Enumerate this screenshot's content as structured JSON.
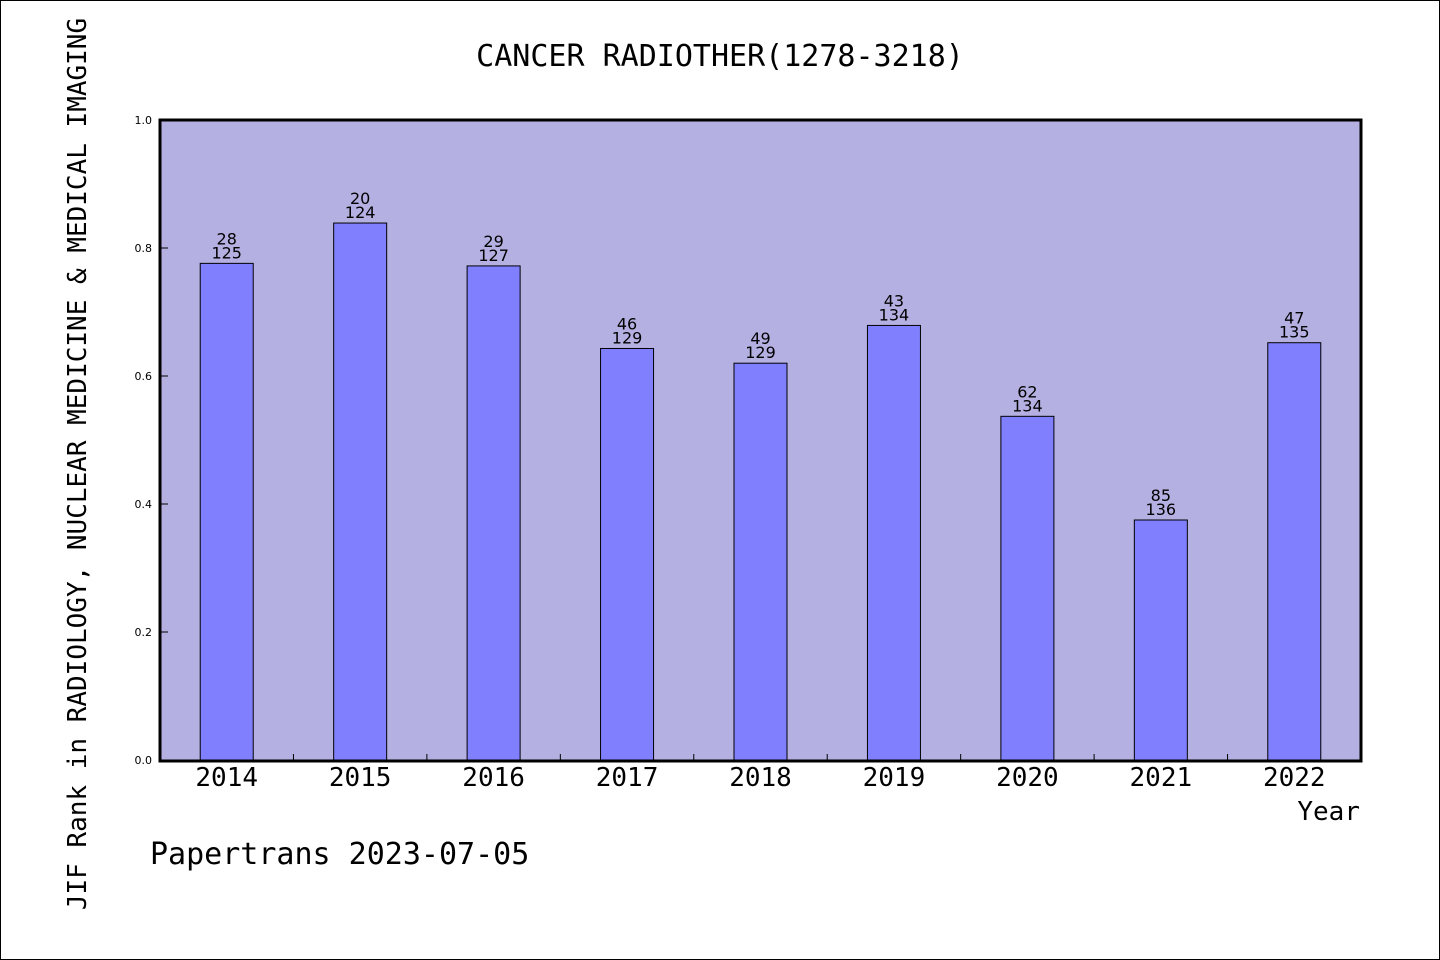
{
  "chart_data": {
    "type": "bar",
    "title": "CANCER RADIOTHER(1278-3218)",
    "xlabel": "Year",
    "ylabel": "JIF Rank in RADIOLOGY, NUCLEAR MEDICINE & MEDICAL IMAGING",
    "ylim": [
      0,
      1.0
    ],
    "yticks": [
      "0.0",
      "0.2",
      "0.4",
      "0.6",
      "0.8",
      "1.0"
    ],
    "categories": [
      "2014",
      "2015",
      "2016",
      "2017",
      "2018",
      "2019",
      "2020",
      "2021",
      "2022"
    ],
    "values": [
      0.776,
      0.839,
      0.772,
      0.643,
      0.62,
      0.679,
      0.537,
      0.375,
      0.652
    ],
    "labels_top": [
      "28",
      "20",
      "29",
      "46",
      "49",
      "43",
      "62",
      "85",
      "47"
    ],
    "labels_bottom": [
      "125",
      "124",
      "127",
      "129",
      "129",
      "134",
      "134",
      "136",
      "135"
    ],
    "grid": false,
    "colors": {
      "plot_background": "#b5b0e2",
      "bar_fill": "#8080ff",
      "bar_stroke": "#000000"
    }
  },
  "footer": {
    "credit": "Papertrans 2023-07-05"
  }
}
